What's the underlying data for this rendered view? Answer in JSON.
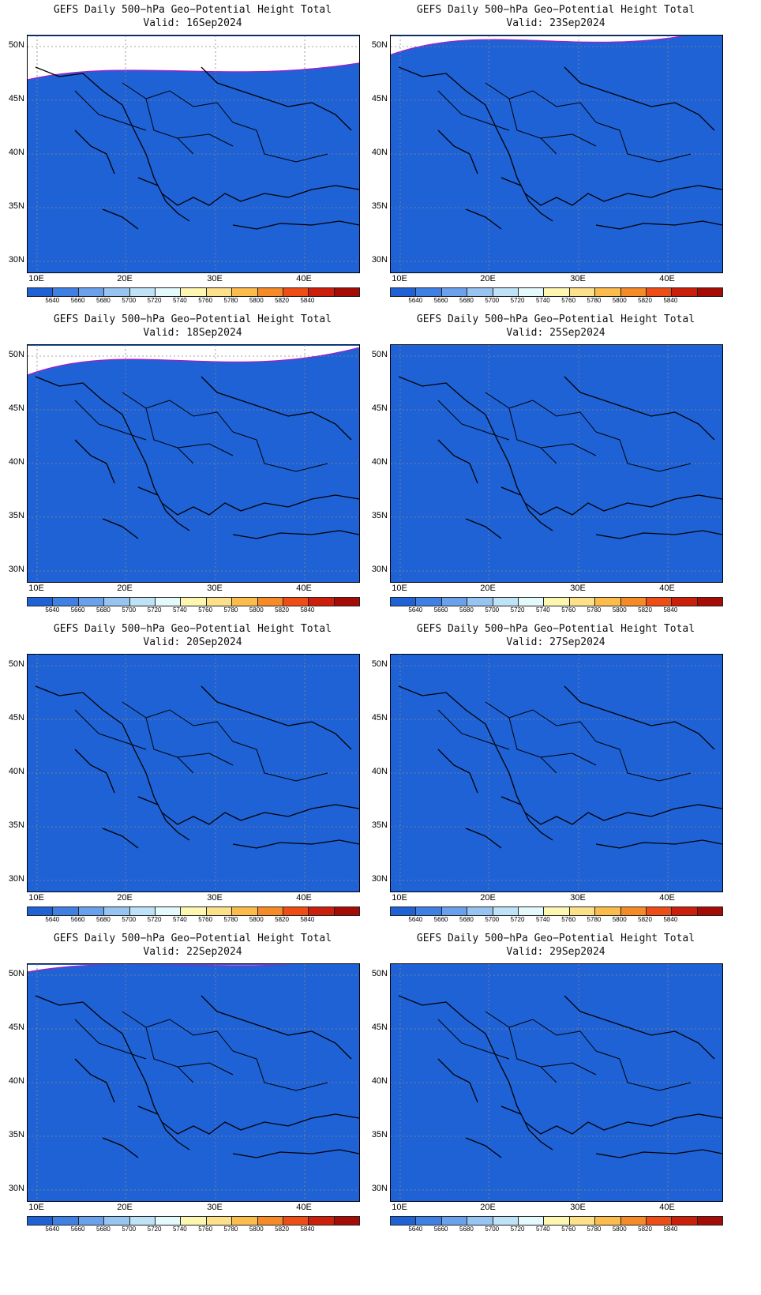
{
  "title_line": "GEFS Daily 500−hPa Geo−Potential Height Total",
  "panels": [
    {
      "valid": "Valid:  16Sep2024",
      "shift": 0.05
    },
    {
      "valid": "Valid:  23Sep2024",
      "shift": 0.3
    },
    {
      "valid": "Valid:  18Sep2024",
      "shift": 0.22
    },
    {
      "valid": "Valid:  25Sep2024",
      "shift": 0.48
    },
    {
      "valid": "Valid:  20Sep2024",
      "shift": 0.4
    },
    {
      "valid": "Valid:  27Sep2024",
      "shift": 0.55
    },
    {
      "valid": "Valid:  22Sep2024",
      "shift": 0.32
    },
    {
      "valid": "Valid:  29Sep2024",
      "shift": 0.5
    }
  ],
  "lat_labels": [
    "50N",
    "45N",
    "40N",
    "35N",
    "30N"
  ],
  "lon_labels": [
    "10E",
    "20E",
    "30E",
    "40E"
  ],
  "colorbar": {
    "labels": [
      "5640",
      "5660",
      "5680",
      "5700",
      "5720",
      "5740",
      "5760",
      "5780",
      "5800",
      "5820",
      "5840"
    ],
    "colors": [
      "#1f62d6",
      "#3f80e5",
      "#6aa1ec",
      "#98c4f2",
      "#bfe3f6",
      "#e4f9fb",
      "#fdf6b0",
      "#fde08a",
      "#fbbc4c",
      "#f58a26",
      "#ee4d15",
      "#cb1f0b",
      "#a50c05"
    ]
  }
}
